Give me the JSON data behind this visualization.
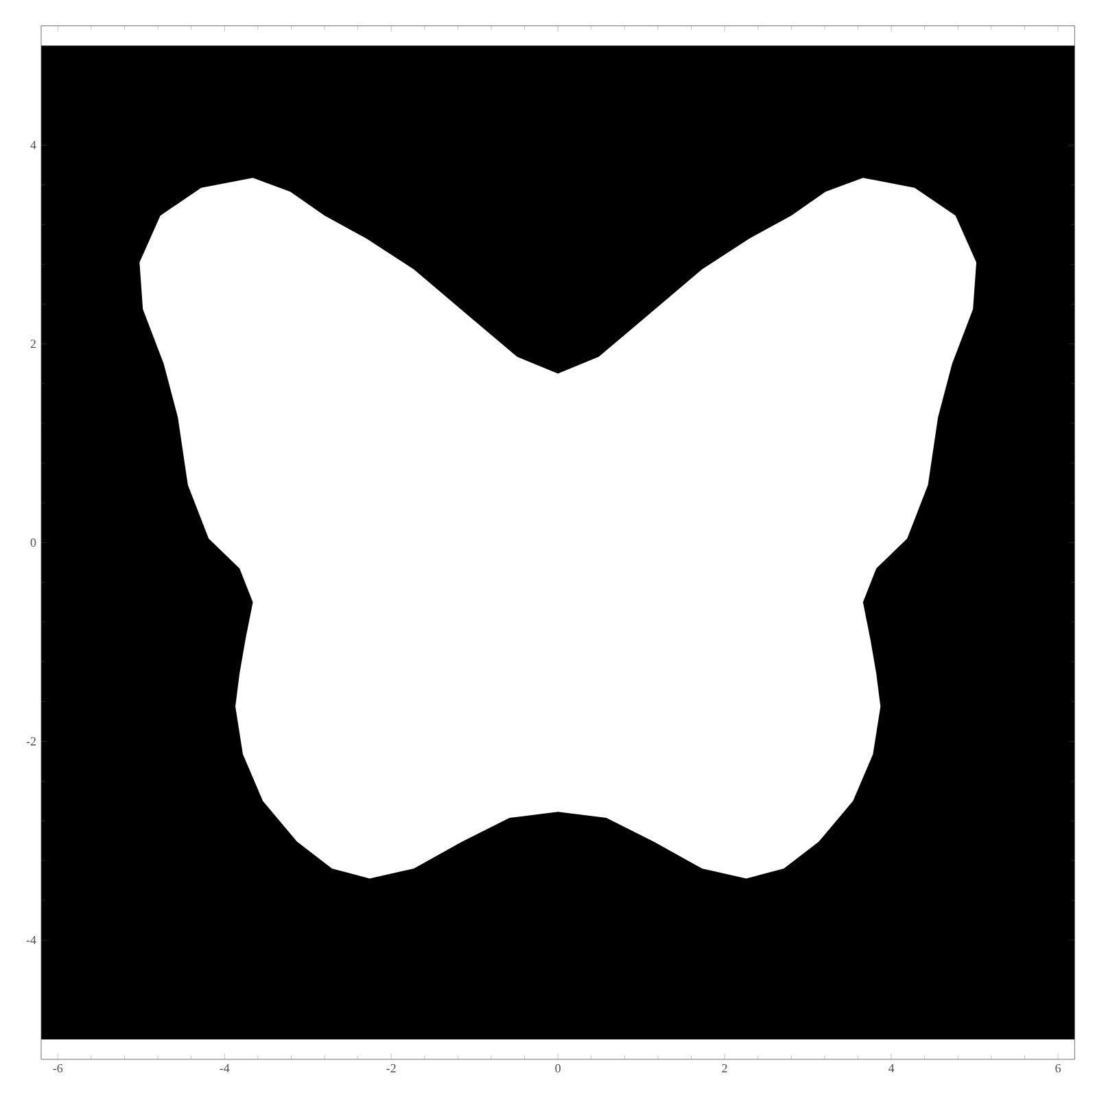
{
  "chart_data": {
    "type": "area",
    "xlim": [
      -6.2,
      6.2
    ],
    "ylim": [
      -5.2,
      5.2
    ],
    "xticks": [
      -6,
      -4,
      -2,
      0,
      2,
      4,
      6
    ],
    "yticks": [
      -4,
      -2,
      0,
      2,
      4
    ],
    "grid": false,
    "bands": [
      {
        "axis": "y",
        "from": -5,
        "to": 5,
        "color": "#000000"
      }
    ],
    "series": [
      {
        "color": "#ffffff",
        "x": [
          0,
          0.49,
          1.07,
          1.73,
          2.3,
          2.8,
          3.21,
          3.66,
          4.28,
          4.77,
          5.02,
          4.98,
          4.73,
          4.56,
          4.44,
          4.19,
          3.82,
          3.66,
          3.75,
          3.82,
          3.87,
          3.78,
          3.54,
          3.13,
          2.71,
          2.26,
          1.73,
          1.15,
          0.58,
          0,
          -0.58,
          -1.15,
          -1.73,
          -2.26,
          -2.71,
          -3.13,
          -3.54,
          -3.78,
          -3.87,
          -3.82,
          -3.75,
          -3.66,
          -3.82,
          -4.19,
          -4.44,
          -4.56,
          -4.73,
          -4.98,
          -5.02,
          -4.77,
          -4.28,
          -3.66,
          -3.21,
          -2.8,
          -2.3,
          -1.73,
          -1.07,
          -0.49
        ],
        "values": [
          1.7,
          1.87,
          2.28,
          2.75,
          3.06,
          3.29,
          3.53,
          3.67,
          3.57,
          3.29,
          2.82,
          2.35,
          1.8,
          1.26,
          0.58,
          0.04,
          -0.26,
          -0.6,
          -0.98,
          -1.32,
          -1.65,
          -2.13,
          -2.6,
          -3.01,
          -3.28,
          -3.38,
          -3.28,
          -3.01,
          -2.77,
          -2.71,
          -2.77,
          -3.01,
          -3.28,
          -3.38,
          -3.28,
          -3.01,
          -2.6,
          -2.13,
          -1.65,
          -1.32,
          -0.98,
          -0.6,
          -0.26,
          0.04,
          0.58,
          1.26,
          1.8,
          2.35,
          2.82,
          3.29,
          3.57,
          3.67,
          3.53,
          3.29,
          3.06,
          2.75,
          2.28,
          1.87
        ]
      }
    ]
  }
}
